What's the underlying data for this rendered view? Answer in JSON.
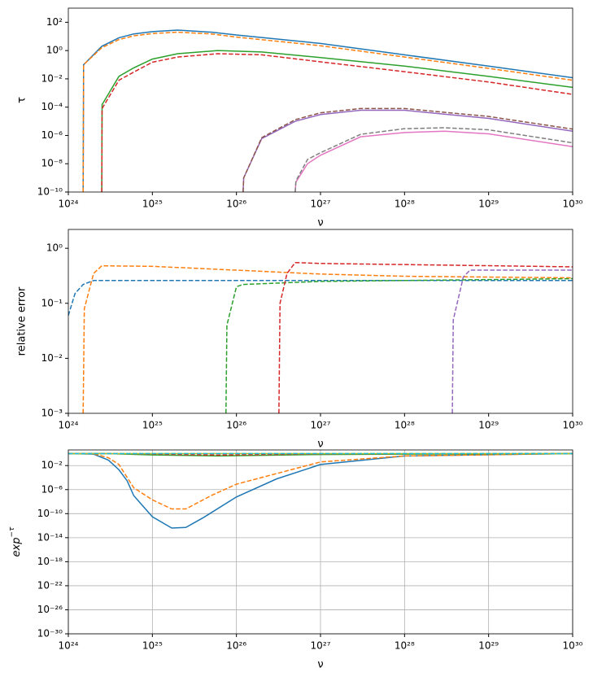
{
  "chart_data": [
    {
      "type": "line",
      "xlabel": "ν",
      "ylabel": "τ",
      "xlog": true,
      "ylog": true,
      "grid": false,
      "xlim": [
        1e+24,
        1e+30
      ],
      "xticks": [
        {
          "value": 1e+24,
          "label": "10²⁴"
        },
        {
          "value": 1e+25,
          "label": "10²⁵"
        },
        {
          "value": 1e+26,
          "label": "10²⁶"
        },
        {
          "value": 1e+27,
          "label": "10²⁷"
        },
        {
          "value": 1e+28,
          "label": "10²⁸"
        },
        {
          "value": 1e+29,
          "label": "10²⁹"
        },
        {
          "value": 1e+30,
          "label": "10³⁰"
        }
      ],
      "ylim": [
        1e-10,
        1000
      ],
      "yticks": [
        {
          "value": 1e-10,
          "label": "10⁻¹⁰"
        },
        {
          "value": 1e-08,
          "label": "10⁻⁸"
        },
        {
          "value": 1e-06,
          "label": "10⁻⁶"
        },
        {
          "value": 0.0001,
          "label": "10⁻⁴"
        },
        {
          "value": 0.01,
          "label": "10⁻²"
        },
        {
          "value": 1,
          "label": "10⁰"
        },
        {
          "value": 100,
          "label": "10²"
        }
      ],
      "series": [
        {
          "color": "#1f77b4",
          "dash": false,
          "x": [
            1.5e+24,
            1.52e+24,
            2.5e+24,
            4e+24,
            6e+24,
            1e+25,
            2e+25,
            5e+25,
            1e+26,
            1e+27,
            1e+28,
            1e+29,
            1e+30
          ],
          "values": [
            1e-10,
            0.1,
            2,
            8,
            15,
            22,
            28,
            20,
            12.6,
            3.2,
            0.5,
            0.08,
            0.012
          ]
        },
        {
          "color": "#ff7f0e",
          "dash": true,
          "x": [
            1.5e+24,
            1.52e+24,
            2.5e+24,
            4e+24,
            6e+24,
            1e+25,
            2e+25,
            5e+25,
            1e+26,
            1e+27,
            1e+28,
            1e+29,
            1e+30
          ],
          "values": [
            1e-10,
            0.1,
            1.6,
            6,
            11,
            16,
            20,
            15,
            9,
            2.2,
            0.35,
            0.055,
            0.008
          ]
        },
        {
          "color": "#2ca02c",
          "dash": false,
          "x": [
            2.5e+24,
            2.52e+24,
            4e+24,
            6e+24,
            1e+25,
            2e+25,
            6e+25,
            2e+26,
            1e+27,
            1e+28,
            1e+29,
            1e+30
          ],
          "values": [
            1e-10,
            0.00015,
            0.015,
            0.06,
            0.25,
            0.6,
            1,
            0.8,
            0.32,
            0.08,
            0.015,
            0.0025
          ]
        },
        {
          "color": "#d62728",
          "dash": true,
          "x": [
            2.5e+24,
            2.52e+24,
            4e+24,
            6e+24,
            1e+25,
            2e+25,
            6e+25,
            2e+26,
            1e+27,
            1e+28,
            1e+29,
            1e+30
          ],
          "values": [
            1e-10,
            8e-05,
            0.008,
            0.03,
            0.15,
            0.35,
            0.6,
            0.5,
            0.16,
            0.032,
            0.006,
            0.0008
          ]
        },
        {
          "color": "#9467bd",
          "dash": false,
          "x": [
            1.2e+26,
            1.22e+26,
            2e+26,
            5e+26,
            1e+27,
            3e+27,
            1e+28,
            1e+29,
            1e+30
          ],
          "values": [
            1e-10,
            1e-09,
            6e-07,
            1e-05,
            3e-05,
            6e-05,
            6e-05,
            1.6e-05,
            2e-06
          ]
        },
        {
          "color": "#8c564b",
          "dash": true,
          "x": [
            1.2e+26,
            1.22e+26,
            2e+26,
            5e+26,
            1e+27,
            3e+27,
            1e+28,
            1e+29,
            1e+30
          ],
          "values": [
            1e-10,
            1e-09,
            7e-07,
            1.3e-05,
            4e-05,
            8e-05,
            8e-05,
            2.2e-05,
            2.8e-06
          ]
        },
        {
          "color": "#e377c2",
          "dash": false,
          "x": [
            5e+26,
            5.1e+26,
            7e+26,
            1e+27,
            3e+27,
            1e+28,
            3e+28,
            1e+29,
            1e+30
          ],
          "values": [
            1e-10,
            5e-10,
            1e-08,
            4e-08,
            8e-07,
            1.6e-06,
            2e-06,
            1.3e-06,
            1.6e-07
          ]
        },
        {
          "color": "#7f7f7f",
          "dash": true,
          "x": [
            5e+26,
            5.1e+26,
            7e+26,
            1e+27,
            3e+27,
            1e+28,
            3e+28,
            1e+29,
            1e+30
          ],
          "values": [
            1e-10,
            6e-10,
            2e-08,
            6e-08,
            1.2e-06,
            3e-06,
            3.5e-06,
            2.5e-06,
            3e-07
          ]
        }
      ]
    },
    {
      "type": "line",
      "xlabel": "ν",
      "ylabel": "relative error",
      "xlog": true,
      "ylog": true,
      "grid": false,
      "xlim": [
        1e+24,
        1e+30
      ],
      "xticks": [
        {
          "value": 1e+24,
          "label": "10²⁴"
        },
        {
          "value": 1e+25,
          "label": "10²⁵"
        },
        {
          "value": 1e+26,
          "label": "10²⁶"
        },
        {
          "value": 1e+27,
          "label": "10²⁷"
        },
        {
          "value": 1e+28,
          "label": "10²⁸"
        },
        {
          "value": 1e+29,
          "label": "10²⁹"
        },
        {
          "value": 1e+30,
          "label": "10³⁰"
        }
      ],
      "ylim": [
        0.001,
        2.2
      ],
      "yticks": [
        {
          "value": 0.001,
          "label": "10⁻³"
        },
        {
          "value": 0.01,
          "label": "10⁻²"
        },
        {
          "value": 0.1,
          "label": "10⁻¹"
        },
        {
          "value": 1,
          "label": "10⁰"
        }
      ],
      "series": [
        {
          "color": "#1f77b4",
          "dash": true,
          "x": [
            1e+24,
            1.2e+24,
            1.5e+24,
            2e+24,
            1e+30
          ],
          "values": [
            0.06,
            0.15,
            0.22,
            0.26,
            0.26
          ]
        },
        {
          "color": "#ff7f0e",
          "dash": true,
          "x": [
            1.5e+24,
            1.55e+24,
            2e+24,
            2.5e+24,
            1e+25,
            1e+26,
            1e+27,
            1e+28,
            1e+30
          ],
          "values": [
            0.001,
            0.08,
            0.35,
            0.48,
            0.47,
            0.4,
            0.34,
            0.31,
            0.29
          ]
        },
        {
          "color": "#2ca02c",
          "dash": true,
          "x": [
            7.5e+25,
            7.7e+25,
            1e+26,
            1.2e+26,
            1e+27,
            1e+30
          ],
          "values": [
            0.001,
            0.04,
            0.2,
            0.22,
            0.25,
            0.28
          ]
        },
        {
          "color": "#d62728",
          "dash": true,
          "x": [
            3.2e+26,
            3.3e+26,
            4e+26,
            5e+26,
            1e+27,
            1e+30
          ],
          "values": [
            0.001,
            0.1,
            0.35,
            0.55,
            0.53,
            0.46
          ]
        },
        {
          "color": "#9467bd",
          "dash": true,
          "x": [
            3.7e+28,
            3.8e+28,
            5e+28,
            6e+28,
            1e+30
          ],
          "values": [
            0.001,
            0.05,
            0.3,
            0.4,
            0.4
          ]
        }
      ]
    },
    {
      "type": "line",
      "xlabel": "ν",
      "ylabel": {
        "base": "exp",
        "sup": "−τ"
      },
      "xlog": true,
      "ylog": true,
      "grid": true,
      "xlim": [
        1e+24,
        1e+30
      ],
      "xticks": [
        {
          "value": 1e+24,
          "label": "10²⁴"
        },
        {
          "value": 1e+25,
          "label": "10²⁵"
        },
        {
          "value": 1e+26,
          "label": "10²⁶"
        },
        {
          "value": 1e+27,
          "label": "10²⁷"
        },
        {
          "value": 1e+28,
          "label": "10²⁸"
        },
        {
          "value": 1e+29,
          "label": "10²⁹"
        },
        {
          "value": 1e+30,
          "label": "10³⁰"
        }
      ],
      "ylim": [
        1e-30,
        4
      ],
      "yticks": [
        {
          "value": 1e-30,
          "label": "10⁻³⁰"
        },
        {
          "value": 1e-26,
          "label": "10⁻²⁶"
        },
        {
          "value": 1e-22,
          "label": "10⁻²²"
        },
        {
          "value": 1e-18,
          "label": "10⁻¹⁸"
        },
        {
          "value": 1e-14,
          "label": "10⁻¹⁴"
        },
        {
          "value": 1e-10,
          "label": "10⁻¹⁰"
        },
        {
          "value": 1e-06,
          "label": "10⁻⁶"
        },
        {
          "value": 0.01,
          "label": "10⁻²"
        }
      ],
      "series": [
        {
          "color": "#1f77b4",
          "dash": false,
          "x": [
            1e+24,
            2e+24,
            3e+24,
            4e+24,
            5e+24,
            6e+24,
            8e+24,
            1e+25,
            1.7e+25,
            2.5e+25,
            4e+25,
            1e+26,
            3e+26,
            1e+27,
            1e+28,
            1e+30
          ],
          "values": [
            1,
            0.8,
            0.08,
            0.002,
            3e-05,
            1e-07,
            1e-09,
            3e-11,
            4e-13,
            5e-13,
            2e-11,
            6e-08,
            6e-05,
            0.015,
            0.4,
            1
          ]
        },
        {
          "color": "#ff7f0e",
          "dash": true,
          "x": [
            1e+24,
            2e+24,
            3e+24,
            4e+24,
            6e+24,
            1e+25,
            1.7e+25,
            2.5e+25,
            5e+25,
            1e+26,
            1e+27,
            1e+28,
            1e+30
          ],
          "values": [
            1,
            0.9,
            0.2,
            0.015,
            2e-06,
            2e-08,
            6e-10,
            6e-10,
            1e-07,
            8e-06,
            0.04,
            0.4,
            1
          ]
        },
        {
          "color": "#2ca02c",
          "dash": false,
          "x": [
            1e+24,
            3e+24,
            1e+25,
            6e+25,
            1e+27,
            1e+30
          ],
          "values": [
            1,
            1,
            0.6,
            0.4,
            0.7,
            1
          ]
        },
        {
          "color": "#d62728",
          "dash": true,
          "x": [
            1e+24,
            3e+24,
            1e+25,
            6e+25,
            1e+27,
            1e+30
          ],
          "values": [
            1,
            1,
            0.8,
            0.55,
            0.85,
            1
          ]
        },
        {
          "color": "#bcbd22",
          "dash": false,
          "x": [
            1e+24,
            1e+30
          ],
          "values": [
            1,
            1
          ]
        },
        {
          "color": "#17becf",
          "dash": true,
          "x": [
            1e+24,
            1e+30
          ],
          "values": [
            1,
            1
          ]
        }
      ]
    }
  ]
}
